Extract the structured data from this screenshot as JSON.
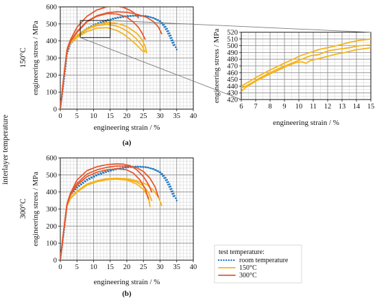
{
  "figure": {
    "left_label": "interlayer temperature",
    "row_labels": [
      "150°C",
      "300°C"
    ]
  },
  "colors": {
    "room": "#1f7ac4",
    "c150": "#f5b31b",
    "c300": "#e4572e",
    "grid_major": "#8a8a8a",
    "grid_minor": "#d7d7d7",
    "axis": "#111111",
    "connector": "#7a7a7a"
  },
  "legend": {
    "title": "test temperature:",
    "items": [
      {
        "key": "room",
        "label": "room temperature",
        "style": "dotted"
      },
      {
        "key": "c150",
        "label": "150°C",
        "style": "solid"
      },
      {
        "key": "c300",
        "label": "300°C",
        "style": "solid"
      }
    ]
  },
  "chart_data": [
    {
      "type": "line",
      "panel_label": "(a)",
      "xlabel": "engineering strain / %",
      "ylabel": "engineering stress / MPa",
      "xlim": [
        0,
        40
      ],
      "ylim": [
        0,
        600
      ],
      "xticks": [
        "0",
        "5",
        "10",
        "15",
        "20",
        "25",
        "30",
        "35",
        "40"
      ],
      "yticks": [
        "0",
        "100",
        "200",
        "300",
        "400",
        "500",
        "600"
      ],
      "grid": true,
      "inset_box": {
        "x": [
          6,
          15
        ],
        "y": [
          420,
          520
        ]
      },
      "series": [
        {
          "key": "room",
          "style": "dotted",
          "x": [
            0,
            1,
            2,
            3,
            5,
            8,
            11,
            14,
            17,
            20,
            23,
            26,
            28,
            30,
            31,
            32,
            33,
            34,
            35
          ],
          "y": [
            0,
            150,
            320,
            380,
            425,
            468,
            497,
            518,
            534,
            544,
            548,
            545,
            535,
            518,
            500,
            475,
            440,
            395,
            350
          ]
        },
        {
          "key": "room",
          "style": "dotted",
          "x": [
            0,
            1,
            2,
            3,
            5,
            8,
            11,
            14,
            17,
            20,
            23,
            26,
            28,
            30,
            31,
            32,
            33,
            34
          ],
          "y": [
            0,
            155,
            325,
            385,
            430,
            474,
            503,
            523,
            537,
            547,
            550,
            546,
            534,
            514,
            490,
            460,
            420,
            375
          ]
        },
        {
          "key": "c150",
          "style": "solid",
          "x": [
            0,
            1,
            2,
            3,
            5,
            8,
            11,
            14,
            17,
            19,
            21,
            22.5,
            24,
            25
          ],
          "y": [
            0,
            180,
            340,
            385,
            420,
            455,
            475,
            478,
            462,
            440,
            410,
            385,
            355,
            335
          ]
        },
        {
          "key": "c150",
          "style": "solid",
          "x": [
            0,
            1,
            2,
            3,
            5,
            8,
            11,
            14,
            17,
            19,
            21,
            23,
            24.5,
            25.5
          ],
          "y": [
            0,
            180,
            340,
            390,
            430,
            468,
            490,
            497,
            488,
            470,
            445,
            410,
            375,
            335
          ]
        },
        {
          "key": "c150",
          "style": "solid",
          "x": [
            0,
            1,
            2,
            3,
            5,
            8,
            11,
            14,
            17,
            20,
            23,
            24.5,
            25.5,
            26
          ],
          "y": [
            0,
            180,
            340,
            392,
            433,
            472,
            496,
            508,
            504,
            485,
            445,
            410,
            370,
            330
          ]
        },
        {
          "key": "c300",
          "style": "solid",
          "x": [
            0,
            1,
            2,
            3,
            5,
            8,
            11,
            14,
            17,
            20,
            22,
            23.5,
            24.5,
            25.5
          ],
          "y": [
            0,
            180,
            340,
            395,
            450,
            512,
            545,
            560,
            558,
            540,
            510,
            480,
            450,
            410
          ]
        },
        {
          "key": "c300",
          "style": "solid",
          "x": [
            0,
            1,
            2,
            3,
            5,
            8,
            11,
            14,
            17,
            20,
            23,
            26,
            28,
            29.5,
            30.5
          ],
          "y": [
            0,
            180,
            345,
            395,
            455,
            515,
            548,
            565,
            571,
            568,
            557,
            538,
            514,
            482,
            442
          ]
        },
        {
          "key": "c300",
          "style": "solid",
          "x": [
            0,
            1,
            2,
            3,
            5,
            8,
            11,
            14,
            17,
            19,
            21,
            22.5,
            23.5
          ],
          "y": [
            0,
            180,
            350,
            405,
            480,
            545,
            582,
            600,
            603,
            596,
            580,
            560,
            535
          ]
        }
      ]
    },
    {
      "type": "line",
      "panel_label": "",
      "xlabel": "engineering strain / %",
      "ylabel": "engineering stress / MPa",
      "xlim": [
        6,
        15
      ],
      "ylim": [
        420,
        520
      ],
      "xticks": [
        "6",
        "7",
        "8",
        "9",
        "10",
        "11",
        "12",
        "13",
        "14",
        "15"
      ],
      "yticks": [
        "420",
        "430",
        "440",
        "450",
        "460",
        "470",
        "480",
        "490",
        "500",
        "510",
        "520"
      ],
      "grid": true,
      "series": [
        {
          "key": "c150",
          "style": "solid",
          "x": [
            6,
            6.3,
            7,
            7.8,
            8.5,
            9.2,
            9.8,
            10.2,
            10.5,
            10.8,
            11.2,
            11.8,
            12.5,
            13.2,
            14,
            15
          ],
          "y": [
            432,
            438,
            447,
            456,
            463,
            470,
            475,
            476,
            474,
            478,
            480,
            483,
            487,
            490,
            494,
            497
          ]
        },
        {
          "key": "c150",
          "style": "solid",
          "x": [
            6,
            6.5,
            7.2,
            8,
            8.8,
            9.5,
            10.2,
            10.8,
            11.4,
            12,
            12.8,
            13.5,
            14.2,
            15
          ],
          "y": [
            437,
            442,
            451,
            460,
            468,
            474,
            480,
            485,
            487,
            492,
            495,
            497,
            500,
            501
          ]
        },
        {
          "key": "c150",
          "style": "solid",
          "x": [
            6,
            6.5,
            7.2,
            8,
            8.8,
            9.5,
            10.2,
            10.8,
            11.5,
            12.2,
            13,
            13.5,
            14.2,
            15
          ],
          "y": [
            440,
            446,
            455,
            464,
            472,
            479,
            486,
            490,
            495,
            498,
            502,
            505,
            508,
            510
          ]
        }
      ]
    },
    {
      "type": "line",
      "panel_label": "(b)",
      "xlabel": "engineering strain / %",
      "ylabel": "engineering stress / MPa",
      "xlim": [
        0,
        40
      ],
      "ylim": [
        0,
        600
      ],
      "xticks": [
        "0",
        "5",
        "10",
        "15",
        "20",
        "25",
        "30",
        "35",
        "40"
      ],
      "yticks": [
        "0",
        "100",
        "200",
        "300",
        "400",
        "500",
        "600"
      ],
      "grid": true,
      "series": [
        {
          "key": "room",
          "style": "dotted",
          "x": [
            0,
            1,
            2,
            3,
            5,
            8,
            11,
            14,
            17,
            20,
            23,
            26,
            28,
            30,
            31,
            32,
            33,
            34,
            35
          ],
          "y": [
            0,
            150,
            320,
            380,
            425,
            468,
            497,
            518,
            534,
            544,
            548,
            545,
            535,
            518,
            500,
            475,
            440,
            395,
            350
          ]
        },
        {
          "key": "room",
          "style": "dotted",
          "x": [
            0,
            1,
            2,
            3,
            5,
            8,
            11,
            14,
            17,
            20,
            23,
            26,
            28,
            30,
            31,
            32,
            33,
            34
          ],
          "y": [
            0,
            155,
            325,
            385,
            430,
            474,
            503,
            523,
            537,
            547,
            550,
            546,
            534,
            514,
            490,
            460,
            420,
            375
          ]
        },
        {
          "key": "c150",
          "style": "solid",
          "x": [
            0,
            1,
            2,
            3,
            5,
            8,
            11,
            14,
            17,
            20,
            23,
            25,
            26.5,
            27
          ],
          "y": [
            0,
            170,
            315,
            360,
            400,
            440,
            460,
            472,
            475,
            470,
            446,
            415,
            370,
            315
          ]
        },
        {
          "key": "c150",
          "style": "solid",
          "x": [
            0,
            1,
            2,
            3,
            5,
            8,
            11,
            14,
            17,
            20,
            23,
            25,
            26.5,
            27.5
          ],
          "y": [
            0,
            170,
            318,
            362,
            402,
            442,
            462,
            474,
            477,
            474,
            458,
            435,
            398,
            350
          ]
        },
        {
          "key": "c150",
          "style": "solid",
          "x": [
            0,
            1,
            2,
            3,
            5,
            8,
            11,
            14,
            17,
            20,
            23,
            26,
            28,
            29.5,
            30.5
          ],
          "y": [
            0,
            170,
            320,
            365,
            405,
            446,
            466,
            478,
            481,
            478,
            466,
            444,
            410,
            370,
            320
          ]
        },
        {
          "key": "c300",
          "style": "solid",
          "x": [
            0,
            1,
            2,
            3,
            5,
            8,
            11,
            14,
            17,
            20,
            22,
            24,
            25.5,
            26.5
          ],
          "y": [
            0,
            170,
            325,
            380,
            440,
            490,
            516,
            530,
            536,
            530,
            510,
            470,
            420,
            360
          ]
        },
        {
          "key": "c300",
          "style": "solid",
          "x": [
            0,
            1,
            2,
            3,
            5,
            8,
            11,
            14,
            17,
            20,
            23,
            25,
            27,
            28.5,
            29.5
          ],
          "y": [
            0,
            170,
            328,
            385,
            450,
            505,
            530,
            545,
            552,
            552,
            542,
            520,
            480,
            430,
            370
          ]
        },
        {
          "key": "c300",
          "style": "solid",
          "x": [
            0,
            1,
            2,
            3,
            5,
            8,
            11,
            14,
            17,
            19,
            21,
            23,
            25,
            26.5,
            27.5
          ],
          "y": [
            0,
            170,
            330,
            390,
            470,
            525,
            548,
            560,
            565,
            563,
            555,
            530,
            490,
            445,
            400
          ]
        }
      ]
    }
  ]
}
